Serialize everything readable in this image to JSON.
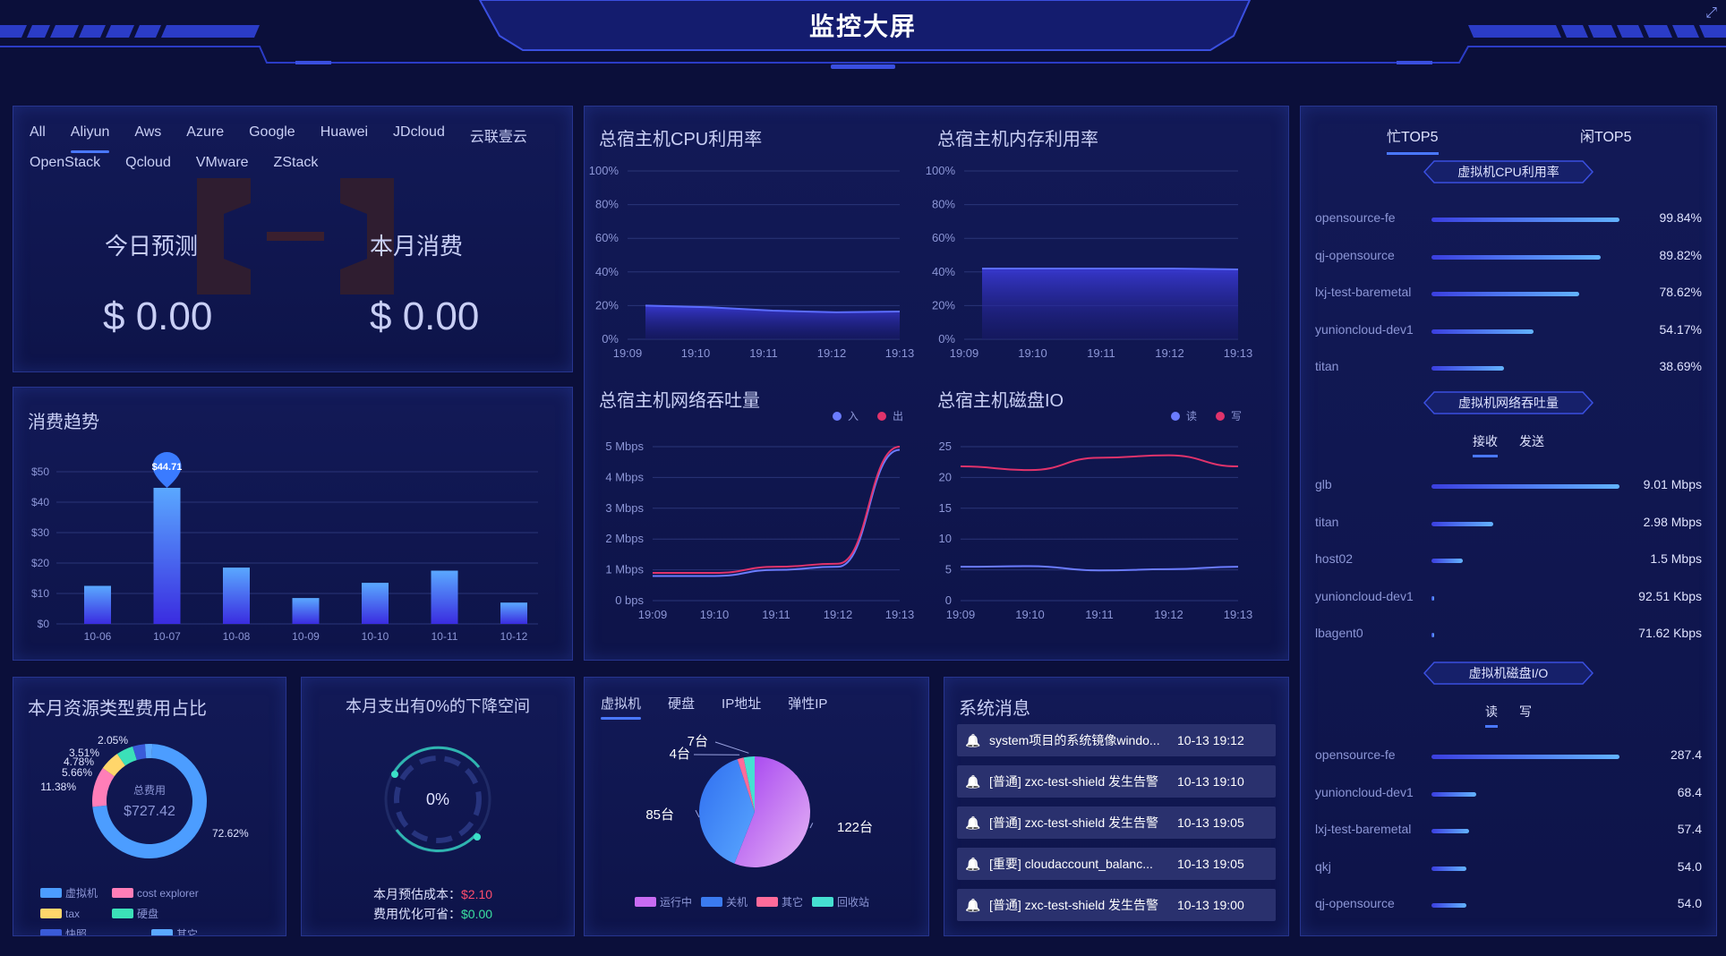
{
  "header": {
    "title": "监控大屏"
  },
  "providers": {
    "row1": [
      "All",
      "Aliyun",
      "Aws",
      "Azure",
      "Google",
      "Huawei",
      "JDcloud",
      "云联壹云"
    ],
    "row2": [
      "OpenStack",
      "Qcloud",
      "VMware",
      "ZStack"
    ],
    "active": "Aliyun"
  },
  "forecast": {
    "today_label": "今日预测",
    "today_value": "$ 0.00",
    "month_label": "本月消费",
    "month_value": "$ 0.00"
  },
  "trend": {
    "title": "消费趋势",
    "highlight_label": "$44.71",
    "chart_data": {
      "type": "bar",
      "categories": [
        "10-06",
        "10-07",
        "10-08",
        "10-09",
        "10-10",
        "10-11",
        "10-12"
      ],
      "values": [
        12.5,
        44.71,
        18.5,
        8.5,
        13.5,
        17.5,
        7
      ],
      "ylim": [
        0,
        50
      ],
      "yticks": [
        "$0",
        "$10",
        "$20",
        "$30",
        "$40",
        "$50"
      ]
    }
  },
  "cpu": {
    "title": "总宿主机CPU利用率",
    "chart_data": {
      "type": "area",
      "x": [
        "19:09",
        "19:10",
        "19:11",
        "19:12",
        "19:13"
      ],
      "values": [
        20,
        19,
        17,
        16,
        16.5
      ],
      "ylim": [
        0,
        100
      ],
      "yticks": [
        "0%",
        "20%",
        "40%",
        "60%",
        "80%",
        "100%"
      ]
    }
  },
  "mem": {
    "title": "总宿主机内存利用率",
    "chart_data": {
      "type": "area",
      "x": [
        "19:09",
        "19:10",
        "19:11",
        "19:12",
        "19:13"
      ],
      "values": [
        42,
        42,
        42,
        42,
        41.5
      ],
      "ylim": [
        0,
        100
      ],
      "yticks": [
        "0%",
        "20%",
        "40%",
        "60%",
        "80%",
        "100%"
      ]
    }
  },
  "net": {
    "title": "总宿主机网络吞吐量",
    "legend": [
      "入",
      "出"
    ],
    "colors": {
      "in": "#6b7cff",
      "out": "#e0336b"
    },
    "chart_data": {
      "type": "line",
      "x": [
        "19:09",
        "19:10",
        "19:11",
        "19:12",
        "19:13"
      ],
      "series": [
        {
          "name": "入",
          "values": [
            0.8,
            0.8,
            1.0,
            1.1,
            4.9
          ]
        },
        {
          "name": "出",
          "values": [
            0.9,
            0.9,
            1.1,
            1.2,
            5.0
          ]
        }
      ],
      "ylim": [
        0,
        5
      ],
      "yticks": [
        "0 bps",
        "1 Mbps",
        "2 Mbps",
        "3 Mbps",
        "4 Mbps",
        "5 Mbps"
      ]
    }
  },
  "disk": {
    "title": "总宿主机磁盘IO",
    "legend": [
      "读",
      "写"
    ],
    "colors": {
      "read": "#6b7cff",
      "write": "#e0336b"
    },
    "chart_data": {
      "type": "line",
      "x": [
        "19:09",
        "19:10",
        "19:11",
        "19:12",
        "19:13"
      ],
      "series": [
        {
          "name": "读",
          "values": [
            5.5,
            5.6,
            4.9,
            5.1,
            5.5
          ]
        },
        {
          "name": "写",
          "values": [
            21.8,
            21.2,
            23.2,
            23.6,
            21.8
          ]
        }
      ],
      "ylim": [
        0,
        25
      ],
      "yticks": [
        "0",
        "5",
        "10",
        "15",
        "20",
        "25"
      ]
    }
  },
  "top5": {
    "tabs": [
      "忙TOP5",
      "闲TOP5"
    ],
    "cpu": {
      "tag": "虚拟机CPU利用率",
      "chart_data": {
        "type": "bar",
        "categories": [
          "opensource-fe",
          "qj-opensource",
          "lxj-test-baremetal",
          "yunioncloud-dev1",
          "titan"
        ],
        "values": [
          99.84,
          89.82,
          78.62,
          54.17,
          38.69
        ]
      },
      "labels": [
        "99.84%",
        "89.82%",
        "78.62%",
        "54.17%",
        "38.69%"
      ]
    },
    "net": {
      "tag": "虚拟机网络吞吐量",
      "subtabs": [
        "接收",
        "发送"
      ],
      "chart_data": {
        "type": "bar",
        "categories": [
          "glb",
          "titan",
          "host02",
          "yunioncloud-dev1",
          "lbagent0"
        ],
        "values": [
          9.01,
          2.98,
          1.5,
          0.09251,
          0.07162
        ]
      },
      "labels": [
        "9.01 Mbps",
        "2.98 Mbps",
        "1.5 Mbps",
        "92.51 Kbps",
        "71.62 Kbps"
      ]
    },
    "disk": {
      "tag": "虚拟机磁盘I/O",
      "subtabs": [
        "读",
        "写"
      ],
      "chart_data": {
        "type": "bar",
        "categories": [
          "opensource-fe",
          "yunioncloud-dev1",
          "lxj-test-baremetal",
          "qkj",
          "qj-opensource"
        ],
        "values": [
          287.4,
          68.4,
          57.4,
          54.0,
          54.0
        ]
      },
      "labels": [
        "287.4",
        "68.4",
        "57.4",
        "54.0",
        "54.0"
      ]
    }
  },
  "resource_share": {
    "title": "本月资源类型费用占比",
    "center_label": "总费用",
    "center_value": "$727.42",
    "chart_data": {
      "type": "pie",
      "labels": [
        "72.62%",
        "11.38%",
        "5.66%",
        "4.78%",
        "3.51%",
        "2.05%"
      ],
      "values": [
        72.62,
        11.38,
        5.66,
        4.78,
        3.51,
        2.05
      ],
      "colors": [
        "#4c9dff",
        "#ff7eb8",
        "#ffd66b",
        "#3be0b8",
        "#3a5bd9",
        "#5aa8ff"
      ]
    },
    "legend": [
      {
        "name": "虚拟机",
        "color": "#4c9dff"
      },
      {
        "name": "cost explorer",
        "color": "#ff7eb8"
      },
      {
        "name": "tax",
        "color": "#ffd66b"
      },
      {
        "name": "硬盘",
        "color": "#3be0b8"
      },
      {
        "name": "快照",
        "color": "#3a5bd9"
      },
      {
        "name": "其它",
        "color": "#5aa8ff"
      }
    ]
  },
  "savings": {
    "title": "本月支出有0%的下降空间",
    "gauge_value": "0%",
    "est_label": "本月预估成本：",
    "est_value": "$2.10",
    "opt_label": "费用优化可省：",
    "opt_value": "$0.00"
  },
  "resources": {
    "tabs": [
      "虚拟机",
      "硬盘",
      "IP地址",
      "弹性IP"
    ],
    "chart_data": {
      "type": "pie",
      "labels": [
        "122台",
        "85台",
        "4台",
        "7台"
      ],
      "values": [
        122,
        85,
        4,
        7
      ],
      "colors": [
        "#c86bf2",
        "#3b7bf0",
        "#ff6b9a",
        "#45e0d2"
      ]
    },
    "legend": [
      {
        "name": "运行中",
        "color": "#c86bf2"
      },
      {
        "name": "关机",
        "color": "#3b7bf0"
      },
      {
        "name": "其它",
        "color": "#ff6b9a"
      },
      {
        "name": "回收站",
        "color": "#45e0d2"
      }
    ]
  },
  "messages": {
    "title": "系统消息",
    "items": [
      {
        "text": "system项目的系统镜像windo...",
        "time": "10-13 19:12"
      },
      {
        "text": "[普通] zxc-test-shield 发生告警",
        "time": "10-13 19:10"
      },
      {
        "text": "[普通] zxc-test-shield 发生告警",
        "time": "10-13 19:05"
      },
      {
        "text": "[重要] cloudaccount_balanc...",
        "time": "10-13 19:05"
      },
      {
        "text": "[普通] zxc-test-shield 发生告警",
        "time": "10-13 19:00"
      }
    ]
  }
}
